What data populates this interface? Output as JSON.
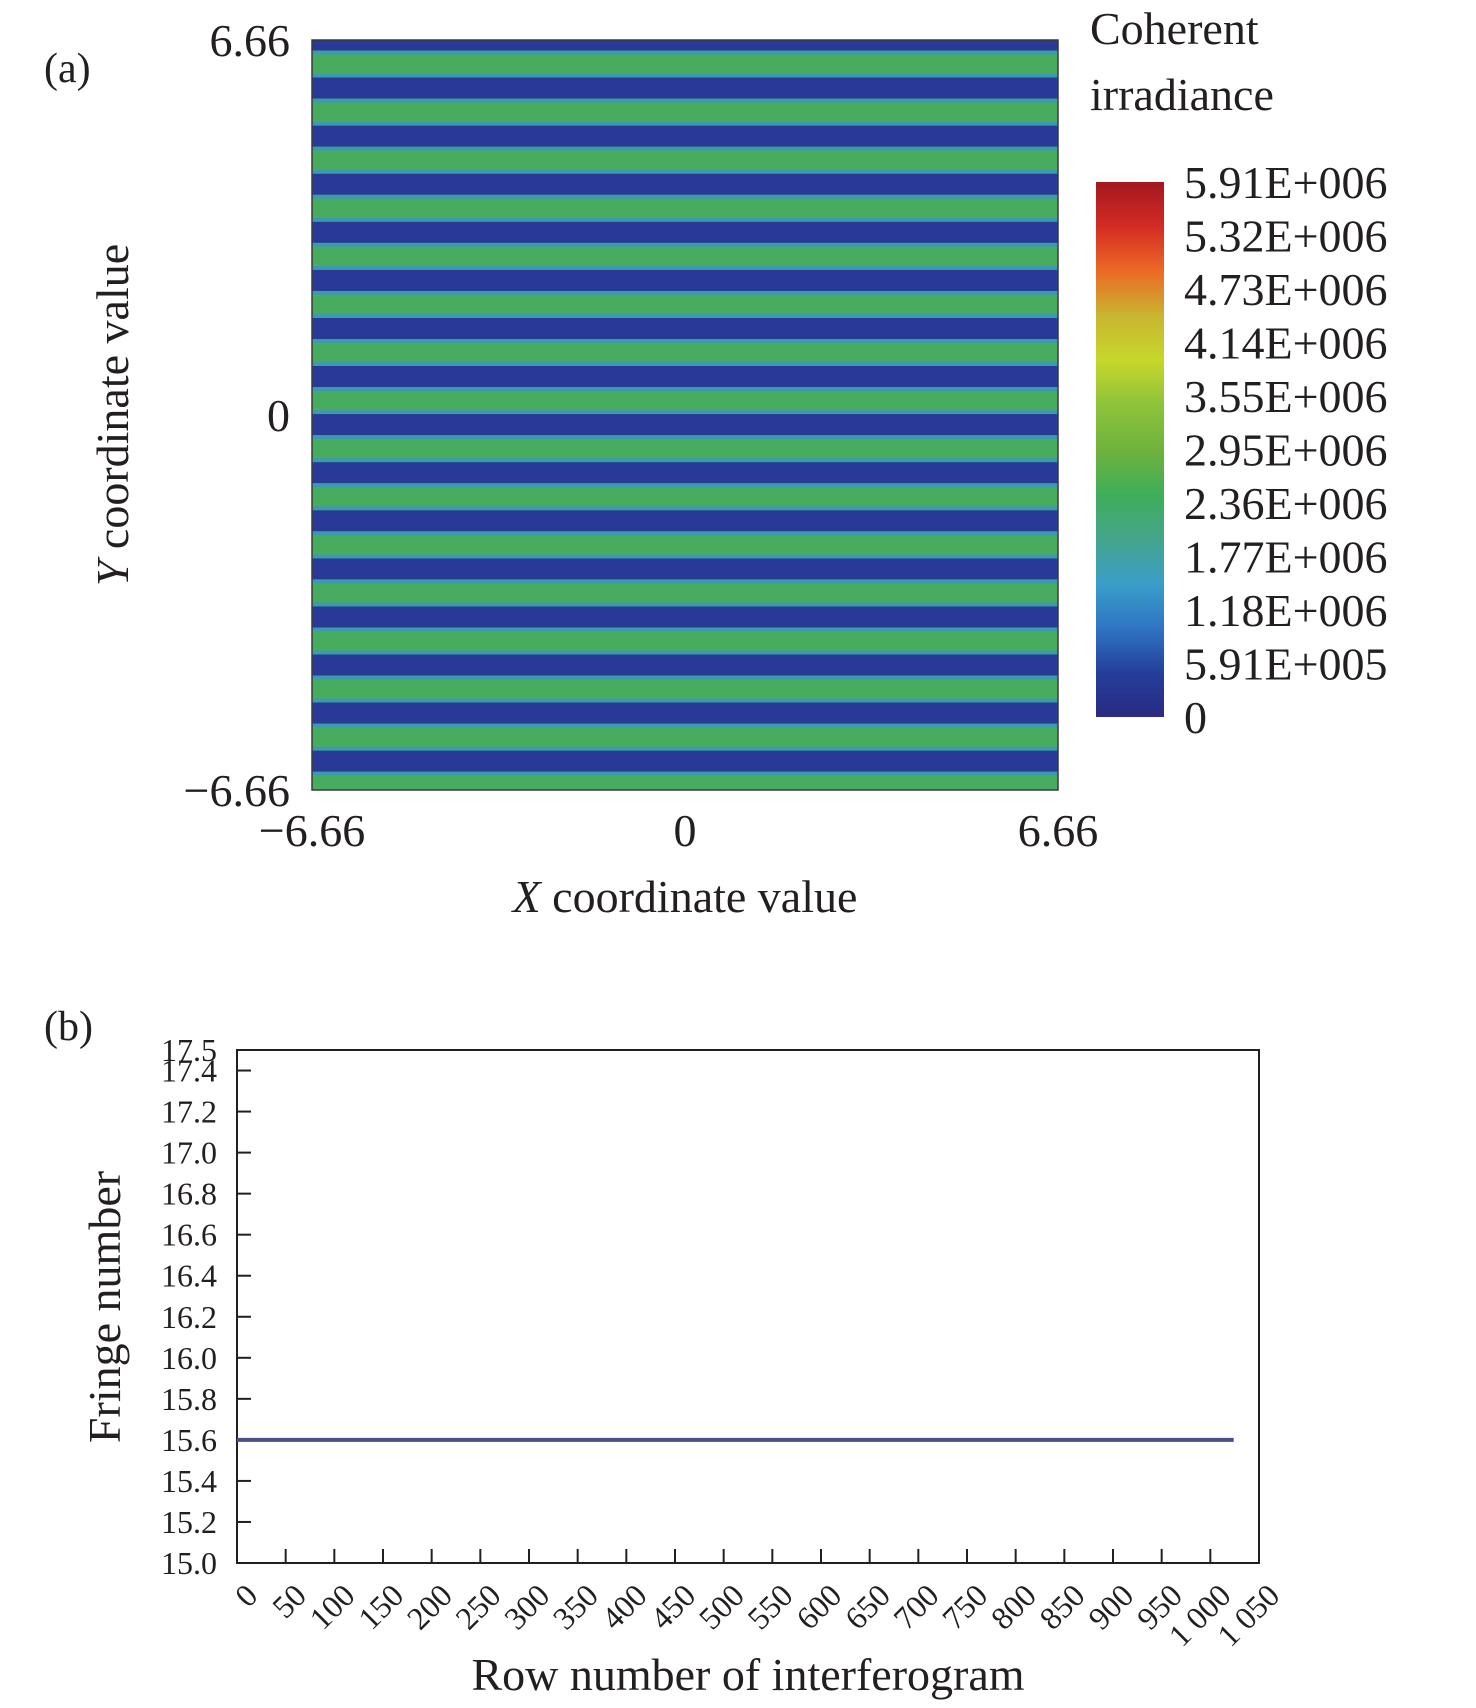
{
  "chart_data": [
    {
      "panel_label": "(a)",
      "type": "heatmap",
      "title": "",
      "xlabel_italic": "X",
      "xlabel_rest": " coordinate value",
      "ylabel_italic": "Y",
      "ylabel_rest": " coordinate value",
      "xlim": [
        -6.66,
        6.66
      ],
      "ylim": [
        -6.66,
        6.66
      ],
      "x_ticks": [
        {
          "value": -6.66,
          "label": "−6.66"
        },
        {
          "value": 0,
          "label": "0"
        },
        {
          "value": 6.66,
          "label": "6.66"
        }
      ],
      "y_ticks": [
        {
          "value": 6.66,
          "label": "6.66"
        },
        {
          "value": 0,
          "label": "0"
        },
        {
          "value": -6.66,
          "label": "−6.66"
        }
      ],
      "fringe_count": 15.6,
      "pattern": "horizontal fringes",
      "colorbar": {
        "title_lines": [
          "Coherent",
          "irradiance"
        ],
        "labels": [
          "5.91E+006",
          "5.32E+006",
          "4.73E+006",
          "4.14E+006",
          "3.55E+006",
          "2.95E+006",
          "2.36E+006",
          "1.77E+006",
          "1.18E+006",
          "5.91E+005",
          "0"
        ],
        "colors_top_to_bottom": [
          "#a3171f",
          "#d42b24",
          "#ec6a25",
          "#c8b530",
          "#c6d72a",
          "#8dc33a",
          "#6fb23c",
          "#3fae5a",
          "#44a58a",
          "#3a9ec8",
          "#2f75c4",
          "#243f9a",
          "#2a2a82"
        ]
      },
      "colors": {
        "fringe_dark": "#283a95",
        "fringe_mid": "#3c9ab0",
        "fringe_light": "#48ac5e"
      }
    },
    {
      "panel_label": "(b)",
      "type": "line",
      "title": "",
      "xlabel": "Row number of interferogram",
      "ylabel": "Fringe number",
      "xlim": [
        0,
        1050
      ],
      "ylim": [
        15.0,
        17.5
      ],
      "x_tick_labels": [
        "0",
        "50",
        "100",
        "150",
        "200",
        "250",
        "300",
        "350",
        "400",
        "450",
        "500",
        "550",
        "600",
        "650",
        "700",
        "750",
        "800",
        "850",
        "900",
        "950",
        "1 000",
        "1 050"
      ],
      "x_tick_values": [
        0,
        50,
        100,
        150,
        200,
        250,
        300,
        350,
        400,
        450,
        500,
        550,
        600,
        650,
        700,
        750,
        800,
        850,
        900,
        950,
        1000,
        1050
      ],
      "y_tick_labels": [
        "15.0",
        "15.2",
        "15.4",
        "15.6",
        "15.8",
        "16.0",
        "16.2",
        "16.4",
        "16.6",
        "16.8",
        "17.0",
        "17.2",
        "17.4",
        "17.5"
      ],
      "y_tick_values": [
        15.0,
        15.2,
        15.4,
        15.6,
        15.8,
        16.0,
        16.2,
        16.4,
        16.6,
        16.8,
        17.0,
        17.2,
        17.4,
        17.5
      ],
      "series": [
        {
          "x": [
            0,
            1024
          ],
          "y": [
            15.6,
            15.6
          ]
        }
      ],
      "colors": {
        "line": "#4a4f8c"
      }
    }
  ]
}
